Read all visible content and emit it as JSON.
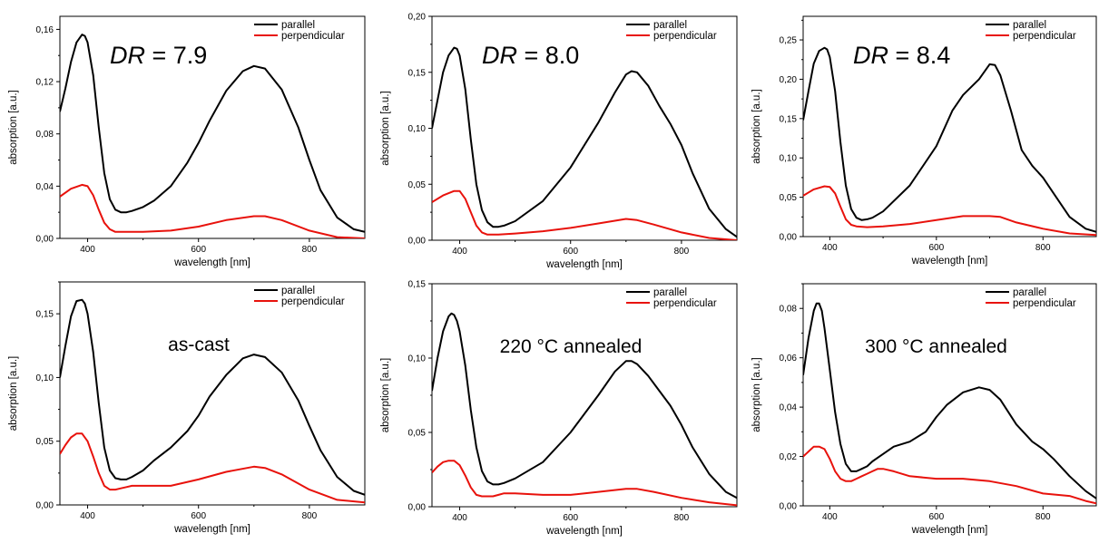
{
  "chart_data": [
    {
      "type": "line",
      "ylabel": "absorption [a.u.]",
      "xlabel": "wavelength [nm]",
      "xlim": [
        350,
        900
      ],
      "ylim": [
        0,
        0.17
      ],
      "xticks": [
        "400",
        "600",
        "800"
      ],
      "yticks": [
        "0,00",
        "0,04",
        "0,08",
        "0,12",
        "0,16"
      ],
      "annotation": {
        "italic": "DR",
        "rest": " = 7.9"
      },
      "annotation_position": "top-left",
      "legend_position": "top-right",
      "series": [
        {
          "name": "parallel",
          "color": "#000000",
          "x": [
            350,
            360,
            370,
            380,
            390,
            395,
            400,
            410,
            420,
            430,
            440,
            450,
            460,
            470,
            480,
            500,
            520,
            550,
            580,
            600,
            620,
            650,
            680,
            700,
            720,
            750,
            780,
            800,
            820,
            850,
            880,
            900
          ],
          "y": [
            0.097,
            0.115,
            0.135,
            0.15,
            0.156,
            0.155,
            0.15,
            0.125,
            0.085,
            0.05,
            0.03,
            0.022,
            0.02,
            0.02,
            0.021,
            0.024,
            0.029,
            0.04,
            0.058,
            0.073,
            0.09,
            0.113,
            0.128,
            0.132,
            0.13,
            0.114,
            0.085,
            0.06,
            0.037,
            0.016,
            0.007,
            0.005
          ]
        },
        {
          "name": "perpendicular",
          "color": "#e8120c",
          "x": [
            350,
            370,
            390,
            400,
            410,
            420,
            430,
            440,
            450,
            460,
            470,
            500,
            550,
            600,
            650,
            700,
            720,
            750,
            800,
            850,
            900
          ],
          "y": [
            0.032,
            0.038,
            0.041,
            0.04,
            0.033,
            0.022,
            0.012,
            0.007,
            0.005,
            0.005,
            0.005,
            0.005,
            0.006,
            0.009,
            0.014,
            0.017,
            0.017,
            0.014,
            0.006,
            0.001,
            0.0
          ]
        }
      ]
    },
    {
      "type": "line",
      "ylabel": "absorption [a.u.]",
      "xlabel": "wavelength [nm]",
      "xlim": [
        350,
        900
      ],
      "ylim": [
        0,
        0.2
      ],
      "xticks": [
        "400",
        "600",
        "800"
      ],
      "yticks": [
        "0,00",
        "0,05",
        "0,10",
        "0,15",
        "0,20"
      ],
      "annotation": {
        "italic": "DR",
        "rest": " = 8.0"
      },
      "annotation_position": "top-left",
      "legend_position": "top-right",
      "series": [
        {
          "name": "parallel",
          "color": "#000000",
          "x": [
            350,
            360,
            370,
            380,
            390,
            395,
            400,
            410,
            420,
            430,
            440,
            450,
            460,
            470,
            480,
            500,
            550,
            600,
            650,
            680,
            700,
            710,
            720,
            740,
            760,
            780,
            800,
            820,
            850,
            880,
            900
          ],
          "y": [
            0.1,
            0.125,
            0.15,
            0.165,
            0.172,
            0.171,
            0.165,
            0.135,
            0.09,
            0.05,
            0.027,
            0.016,
            0.012,
            0.012,
            0.013,
            0.017,
            0.035,
            0.065,
            0.105,
            0.132,
            0.148,
            0.151,
            0.15,
            0.138,
            0.12,
            0.104,
            0.085,
            0.06,
            0.028,
            0.01,
            0.003
          ]
        },
        {
          "name": "perpendicular",
          "color": "#e8120c",
          "x": [
            350,
            370,
            390,
            400,
            410,
            420,
            430,
            440,
            450,
            460,
            470,
            500,
            550,
            600,
            650,
            700,
            720,
            750,
            800,
            850,
            900
          ],
          "y": [
            0.034,
            0.04,
            0.044,
            0.044,
            0.037,
            0.025,
            0.013,
            0.007,
            0.005,
            0.005,
            0.005,
            0.006,
            0.008,
            0.011,
            0.015,
            0.019,
            0.018,
            0.014,
            0.007,
            0.002,
            0.0
          ]
        }
      ]
    },
    {
      "type": "line",
      "ylabel": "absorption [a.u.]",
      "xlabel": "wavelength [nm]",
      "xlim": [
        350,
        900
      ],
      "ylim": [
        0,
        0.28
      ],
      "xticks": [
        "400",
        "600",
        "800"
      ],
      "yticks": [
        "0,00",
        "0,05",
        "0,10",
        "0,15",
        "0,20",
        "0,25"
      ],
      "annotation": {
        "italic": "DR",
        "rest": " = 8.4"
      },
      "annotation_position": "top-left",
      "legend_position": "top-right",
      "series": [
        {
          "name": "parallel",
          "color": "#000000",
          "x": [
            350,
            360,
            370,
            380,
            390,
            395,
            400,
            410,
            420,
            430,
            440,
            450,
            460,
            470,
            480,
            500,
            550,
            600,
            630,
            650,
            680,
            700,
            710,
            720,
            740,
            760,
            780,
            800,
            820,
            850,
            880,
            900
          ],
          "y": [
            0.148,
            0.185,
            0.22,
            0.236,
            0.24,
            0.238,
            0.228,
            0.185,
            0.12,
            0.065,
            0.035,
            0.024,
            0.021,
            0.022,
            0.024,
            0.032,
            0.065,
            0.115,
            0.16,
            0.18,
            0.2,
            0.219,
            0.218,
            0.205,
            0.16,
            0.11,
            0.09,
            0.075,
            0.055,
            0.025,
            0.01,
            0.006
          ]
        },
        {
          "name": "perpendicular",
          "color": "#e8120c",
          "x": [
            350,
            370,
            390,
            400,
            410,
            420,
            430,
            440,
            450,
            470,
            500,
            550,
            600,
            650,
            700,
            720,
            750,
            800,
            850,
            900
          ],
          "y": [
            0.052,
            0.06,
            0.064,
            0.063,
            0.055,
            0.038,
            0.022,
            0.015,
            0.013,
            0.012,
            0.013,
            0.016,
            0.021,
            0.026,
            0.026,
            0.025,
            0.018,
            0.01,
            0.004,
            0.002
          ]
        }
      ]
    },
    {
      "type": "line",
      "ylabel": "absorption [a.u.]",
      "xlabel": "wavelength [nm]",
      "xlim": [
        350,
        900
      ],
      "ylim": [
        0,
        0.175
      ],
      "xticks": [
        "400",
        "600",
        "800"
      ],
      "yticks": [
        "0,00",
        "0,05",
        "0,10",
        "0,15"
      ],
      "annotation": {
        "italic": "",
        "rest": "as-cast"
      },
      "annotation_position": "center-left",
      "legend_position": "top-right",
      "series": [
        {
          "name": "parallel",
          "color": "#000000",
          "x": [
            350,
            360,
            370,
            380,
            390,
            395,
            400,
            410,
            420,
            430,
            440,
            450,
            460,
            470,
            480,
            500,
            520,
            550,
            580,
            600,
            620,
            650,
            680,
            700,
            720,
            750,
            780,
            800,
            820,
            850,
            880,
            900
          ],
          "y": [
            0.1,
            0.125,
            0.148,
            0.16,
            0.161,
            0.158,
            0.15,
            0.12,
            0.08,
            0.045,
            0.027,
            0.021,
            0.02,
            0.02,
            0.022,
            0.027,
            0.035,
            0.045,
            0.058,
            0.07,
            0.085,
            0.102,
            0.115,
            0.118,
            0.116,
            0.104,
            0.082,
            0.062,
            0.043,
            0.022,
            0.011,
            0.008
          ]
        },
        {
          "name": "perpendicular",
          "color": "#e8120c",
          "x": [
            350,
            360,
            370,
            380,
            390,
            400,
            410,
            420,
            430,
            440,
            450,
            460,
            470,
            480,
            500,
            550,
            600,
            650,
            700,
            720,
            750,
            800,
            850,
            900
          ],
          "y": [
            0.04,
            0.047,
            0.053,
            0.056,
            0.056,
            0.05,
            0.038,
            0.025,
            0.015,
            0.012,
            0.012,
            0.013,
            0.014,
            0.015,
            0.015,
            0.015,
            0.02,
            0.026,
            0.03,
            0.029,
            0.024,
            0.012,
            0.004,
            0.002
          ]
        }
      ]
    },
    {
      "type": "line",
      "ylabel": "absorption [a.u.]",
      "xlabel": "wavelength [nm]",
      "xlim": [
        350,
        900
      ],
      "ylim": [
        0,
        0.15
      ],
      "xticks": [
        "400",
        "600",
        "800"
      ],
      "yticks": [
        "0,00",
        "0,05",
        "0,10",
        "0,15"
      ],
      "annotation": {
        "italic": "",
        "rest": "220 °C annealed"
      },
      "annotation_position": "center-left",
      "legend_position": "top-right",
      "series": [
        {
          "name": "parallel",
          "color": "#000000",
          "x": [
            350,
            360,
            370,
            380,
            385,
            390,
            395,
            400,
            410,
            420,
            430,
            440,
            450,
            460,
            470,
            480,
            500,
            550,
            600,
            650,
            680,
            700,
            710,
            720,
            740,
            760,
            780,
            800,
            820,
            850,
            880,
            900
          ],
          "y": [
            0.078,
            0.1,
            0.118,
            0.128,
            0.13,
            0.129,
            0.125,
            0.118,
            0.095,
            0.065,
            0.04,
            0.024,
            0.017,
            0.015,
            0.015,
            0.016,
            0.019,
            0.03,
            0.05,
            0.075,
            0.091,
            0.098,
            0.098,
            0.096,
            0.088,
            0.078,
            0.068,
            0.055,
            0.04,
            0.022,
            0.01,
            0.006
          ]
        },
        {
          "name": "perpendicular",
          "color": "#e8120c",
          "x": [
            350,
            360,
            370,
            380,
            390,
            400,
            410,
            420,
            430,
            440,
            450,
            460,
            470,
            480,
            490,
            500,
            550,
            600,
            650,
            700,
            720,
            750,
            800,
            850,
            900
          ],
          "y": [
            0.023,
            0.027,
            0.03,
            0.031,
            0.031,
            0.028,
            0.021,
            0.013,
            0.008,
            0.007,
            0.007,
            0.007,
            0.008,
            0.009,
            0.009,
            0.009,
            0.008,
            0.008,
            0.01,
            0.012,
            0.012,
            0.01,
            0.006,
            0.003,
            0.001
          ]
        }
      ]
    },
    {
      "type": "line",
      "ylabel": "absorption [a.u.]",
      "xlabel": "wavelength [nm]",
      "xlim": [
        350,
        900
      ],
      "ylim": [
        0,
        0.09
      ],
      "xticks": [
        "400",
        "600",
        "800"
      ],
      "yticks": [
        "0,00",
        "0,02",
        "0,04",
        "0,06",
        "0,08"
      ],
      "annotation": {
        "italic": "",
        "rest": "300 °C annealed"
      },
      "annotation_position": "center-left",
      "legend_position": "top-right",
      "series": [
        {
          "name": "parallel",
          "color": "#000000",
          "x": [
            350,
            360,
            370,
            375,
            380,
            385,
            390,
            400,
            410,
            420,
            430,
            440,
            450,
            460,
            470,
            480,
            500,
            520,
            550,
            580,
            600,
            620,
            650,
            680,
            700,
            720,
            750,
            780,
            800,
            820,
            850,
            880,
            900
          ],
          "y": [
            0.053,
            0.068,
            0.079,
            0.082,
            0.082,
            0.079,
            0.072,
            0.055,
            0.038,
            0.025,
            0.017,
            0.014,
            0.014,
            0.015,
            0.016,
            0.018,
            0.021,
            0.024,
            0.026,
            0.03,
            0.036,
            0.041,
            0.046,
            0.048,
            0.047,
            0.043,
            0.033,
            0.026,
            0.023,
            0.019,
            0.012,
            0.006,
            0.003
          ]
        },
        {
          "name": "perpendicular",
          "color": "#e8120c",
          "x": [
            350,
            360,
            370,
            380,
            390,
            400,
            410,
            420,
            430,
            440,
            450,
            460,
            470,
            480,
            490,
            500,
            520,
            550,
            600,
            650,
            700,
            750,
            800,
            850,
            880,
            900
          ],
          "y": [
            0.02,
            0.022,
            0.024,
            0.024,
            0.023,
            0.019,
            0.014,
            0.011,
            0.01,
            0.01,
            0.011,
            0.012,
            0.013,
            0.014,
            0.015,
            0.015,
            0.014,
            0.012,
            0.011,
            0.011,
            0.01,
            0.008,
            0.005,
            0.004,
            0.002,
            0.001
          ]
        }
      ]
    }
  ]
}
